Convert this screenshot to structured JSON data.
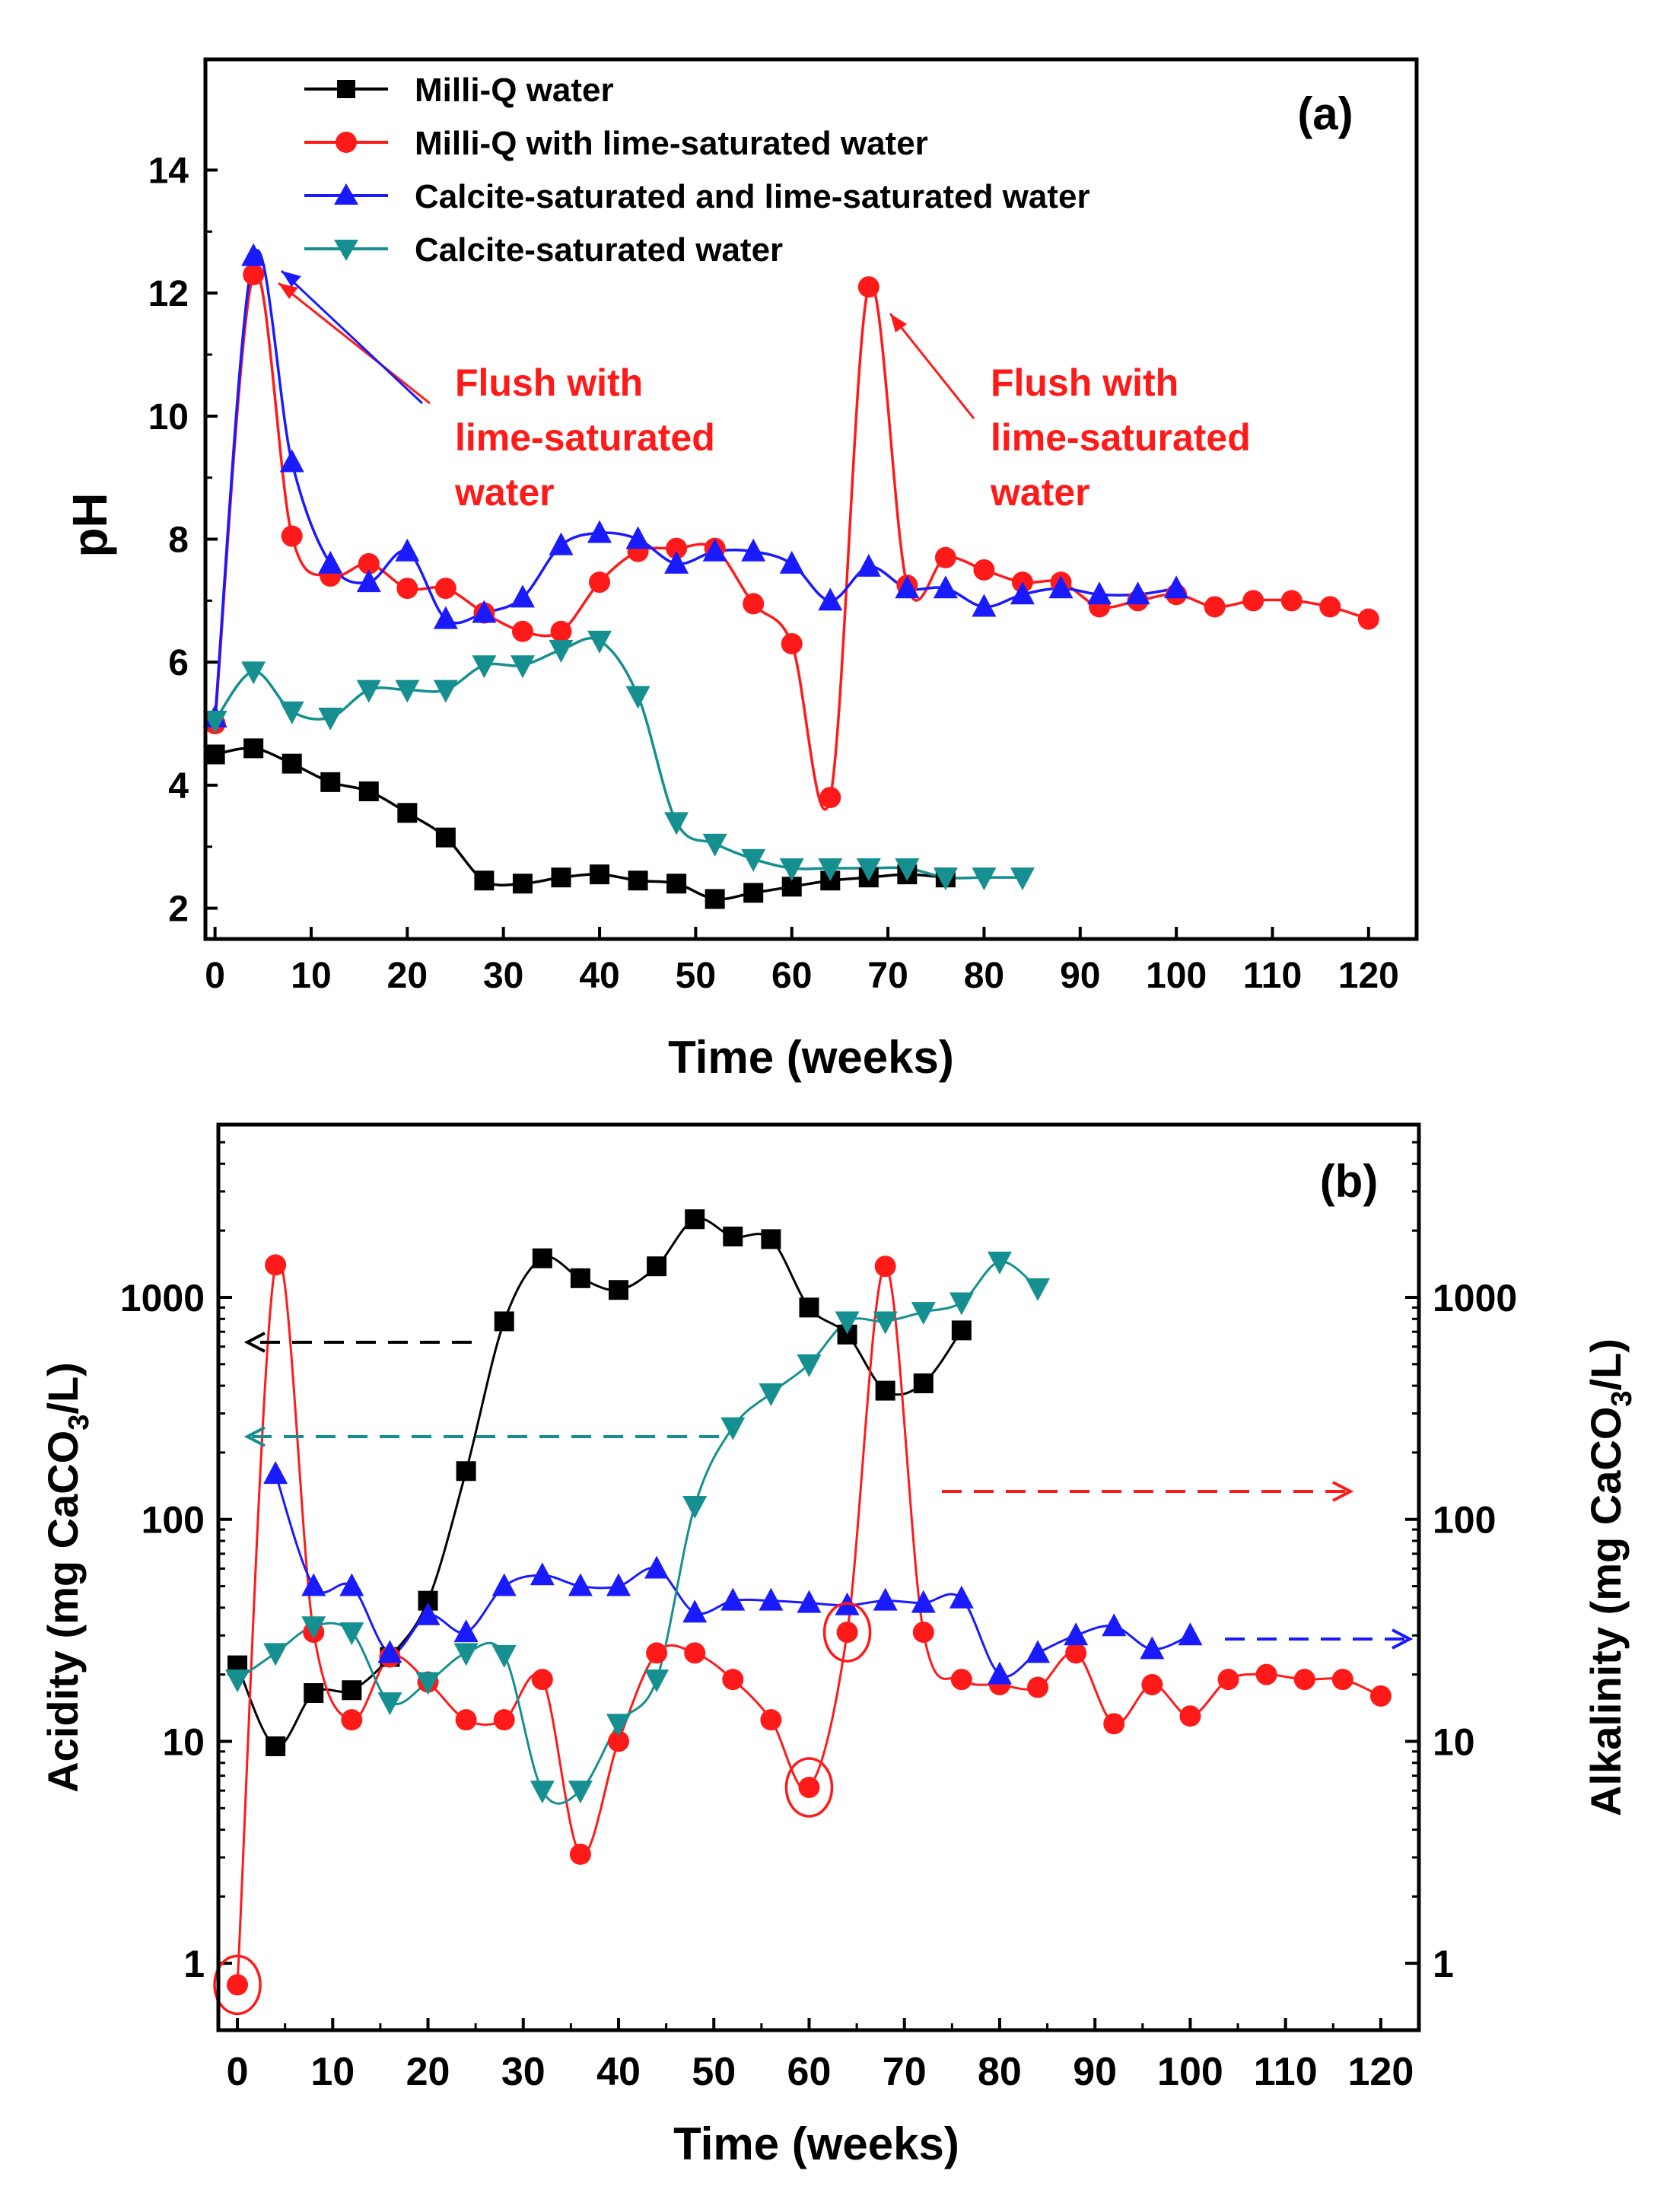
{
  "colors": {
    "black": "#000000",
    "red": "#ff1a1a",
    "blue": "#1a1aff",
    "teal": "#158f8f"
  },
  "chart_data": [
    {
      "panel_label": "(a)",
      "type": "line",
      "xlabel": "Time (weeks)",
      "ylabel": "pH",
      "xlim": [
        -1,
        125
      ],
      "ylim": [
        1.5,
        15.8
      ],
      "xticks": [
        0,
        10,
        20,
        30,
        40,
        50,
        60,
        70,
        80,
        90,
        100,
        110,
        120
      ],
      "yticks": [
        2,
        4,
        6,
        8,
        10,
        12,
        14
      ],
      "legend": [
        {
          "label": "Milli-Q water",
          "color": "#000000",
          "marker": "square"
        },
        {
          "label": "Milli-Q with lime-saturated water",
          "color": "#ff1a1a",
          "marker": "circle"
        },
        {
          "label": "Calcite-saturated and lime-saturated water",
          "color": "#1a1aff",
          "marker": "triangle-up"
        },
        {
          "label": "Calcite-saturated water",
          "color": "#158f8f",
          "marker": "triangle-down"
        }
      ],
      "annotations": [
        {
          "lines": [
            "Flush with",
            "lime-saturated",
            "water"
          ],
          "color": "#ff1a1a",
          "points_to_weeks": 4
        },
        {
          "lines": [
            "Flush with",
            "lime-saturated",
            "water"
          ],
          "color": "#ff1a1a",
          "points_to_weeks": 68
        }
      ],
      "series": [
        {
          "name": "Milli-Q water",
          "color": "#000000",
          "marker": "square",
          "x": [
            0,
            4,
            8,
            12,
            16,
            20,
            24,
            28,
            32,
            36,
            40,
            44,
            48,
            52,
            56,
            60,
            64,
            68,
            72,
            76
          ],
          "y": [
            4.5,
            4.6,
            4.35,
            4.05,
            3.9,
            3.55,
            3.15,
            2.45,
            2.4,
            2.5,
            2.55,
            2.45,
            2.4,
            2.15,
            2.25,
            2.35,
            2.45,
            2.5,
            2.55,
            2.5
          ]
        },
        {
          "name": "Milli-Q with lime-saturated water",
          "color": "#ff1a1a",
          "marker": "circle",
          "x": [
            0,
            4,
            8,
            12,
            16,
            20,
            24,
            28,
            32,
            36,
            40,
            44,
            48,
            52,
            56,
            60,
            64,
            68,
            72,
            76,
            80,
            84,
            88,
            92,
            96,
            100,
            104,
            108,
            112,
            116,
            120
          ],
          "y": [
            5.0,
            12.3,
            8.05,
            7.4,
            7.6,
            7.2,
            7.2,
            6.8,
            6.5,
            6.5,
            7.3,
            7.8,
            7.85,
            7.85,
            6.95,
            6.3,
            3.8,
            12.1,
            7.25,
            7.7,
            7.5,
            7.3,
            7.3,
            6.9,
            7.0,
            7.1,
            6.9,
            7.0,
            7.0,
            6.9,
            6.7
          ]
        },
        {
          "name": "Calcite-saturated and lime-saturated water",
          "color": "#1a1aff",
          "marker": "triangle-up",
          "x": [
            0,
            4,
            8,
            12,
            16,
            20,
            24,
            28,
            32,
            36,
            40,
            44,
            48,
            52,
            56,
            60,
            64,
            68,
            72,
            76,
            80,
            84,
            88,
            92,
            96,
            100
          ],
          "y": [
            5.1,
            12.6,
            9.25,
            7.6,
            7.3,
            7.8,
            6.7,
            6.8,
            7.05,
            7.9,
            8.1,
            8.0,
            7.6,
            7.8,
            7.8,
            7.6,
            7.0,
            7.55,
            7.2,
            7.2,
            6.9,
            7.1,
            7.2,
            7.1,
            7.1,
            7.2
          ]
        },
        {
          "name": "Calcite-saturated water",
          "color": "#158f8f",
          "marker": "triangle-down",
          "x": [
            0,
            4,
            8,
            12,
            16,
            20,
            24,
            28,
            32,
            36,
            40,
            44,
            48,
            52,
            56,
            60,
            64,
            68,
            72,
            76,
            80,
            84
          ],
          "y": [
            5.05,
            5.85,
            5.2,
            5.1,
            5.55,
            5.55,
            5.55,
            5.95,
            5.95,
            6.2,
            6.35,
            5.45,
            3.4,
            3.05,
            2.8,
            2.65,
            2.65,
            2.65,
            2.65,
            2.5,
            2.5,
            2.5
          ]
        }
      ]
    },
    {
      "panel_label": "(b)",
      "type": "line",
      "xlabel": "Time (weeks)",
      "ylabel_left": "Acidity (mg CaCO3/L)",
      "ylabel_right": "Alkalinity (mg CaCO3/L)",
      "ylabel_left_parts": [
        "Acidity (mg CaCO",
        "3",
        "/L)"
      ],
      "ylabel_right_parts": [
        "Alkalinity (mg CaCO",
        "3",
        "/L)"
      ],
      "yscale": "log",
      "xlim": [
        -2,
        124
      ],
      "ylim": [
        0.5,
        6000
      ],
      "xticks": [
        0,
        10,
        20,
        30,
        40,
        50,
        60,
        70,
        80,
        90,
        100,
        110,
        120
      ],
      "yticks": [
        1,
        10,
        100,
        1000
      ],
      "yticks_right": [
        1,
        10,
        100,
        1000
      ],
      "axis_arrows": [
        {
          "color": "#000000",
          "direction": "left-axis",
          "series": "Milli-Q water"
        },
        {
          "color": "#158f8f",
          "direction": "left-axis",
          "series": "Calcite-saturated water"
        },
        {
          "color": "#ff1a1a",
          "direction": "right-axis",
          "series": "Milli-Q with lime-saturated water"
        },
        {
          "color": "#1a1aff",
          "direction": "right-axis",
          "series": "Calcite-saturated and lime-saturated water"
        }
      ],
      "circled_points": [
        {
          "series": "Milli-Q with lime-saturated water",
          "x": 0,
          "y": 0.8
        },
        {
          "series": "Milli-Q with lime-saturated water",
          "x": 60,
          "y": 6.2
        },
        {
          "series": "Milli-Q with lime-saturated water",
          "x": 64,
          "y": 31
        }
      ],
      "series": [
        {
          "name": "Milli-Q water",
          "color": "#000000",
          "marker": "square",
          "axis": "left",
          "x": [
            0,
            4,
            8,
            12,
            16,
            20,
            24,
            28,
            32,
            36,
            40,
            44,
            48,
            52,
            56,
            60,
            64,
            68,
            72,
            76
          ],
          "y": [
            22,
            9.5,
            16.5,
            17,
            24,
            43,
            165,
            780,
            1500,
            1220,
            1080,
            1380,
            2250,
            1880,
            1830,
            900,
            680,
            380,
            410,
            710
          ]
        },
        {
          "name": "Milli-Q with lime-saturated water",
          "color": "#ff1a1a",
          "marker": "circle",
          "axis": "right",
          "x": [
            0,
            4,
            8,
            12,
            16,
            20,
            24,
            28,
            32,
            36,
            40,
            44,
            48,
            52,
            56,
            60,
            64,
            68,
            72,
            76,
            80,
            84,
            88,
            92,
            96,
            100,
            104,
            108,
            112,
            116,
            120
          ],
          "y": [
            0.8,
            1400,
            31,
            12.5,
            24,
            18.5,
            12.5,
            12.5,
            19,
            3.1,
            10,
            25,
            25,
            19,
            12.5,
            6.2,
            31,
            1380,
            31,
            19,
            18,
            17.5,
            25,
            12,
            18,
            13,
            19,
            20,
            19,
            19,
            16
          ]
        },
        {
          "name": "Calcite-saturated and lime-saturated water",
          "color": "#1a1aff",
          "marker": "triangle-up",
          "axis": "right",
          "x": [
            4,
            8,
            12,
            16,
            20,
            24,
            28,
            32,
            36,
            40,
            44,
            48,
            52,
            56,
            60,
            64,
            68,
            72,
            76,
            80,
            84,
            88,
            92,
            96,
            100
          ],
          "y": [
            160,
            50,
            50,
            25,
            37,
            31,
            50,
            56,
            50,
            50,
            60,
            38,
            43,
            43,
            42,
            41,
            43,
            42,
            44,
            20,
            25,
            30,
            33,
            26,
            30
          ]
        },
        {
          "name": "Calcite-saturated water",
          "color": "#158f8f",
          "marker": "triangle-down",
          "axis": "left",
          "x": [
            0,
            4,
            8,
            12,
            16,
            20,
            24,
            28,
            32,
            36,
            40,
            44,
            48,
            52,
            56,
            60,
            64,
            68,
            72,
            76,
            80,
            84
          ],
          "y": [
            19,
            25,
            33,
            31,
            15,
            18.5,
            25,
            24.5,
            6,
            6,
            12,
            19,
            115,
            260,
            370,
            500,
            780,
            780,
            860,
            950,
            1450,
            1100
          ]
        }
      ]
    }
  ]
}
